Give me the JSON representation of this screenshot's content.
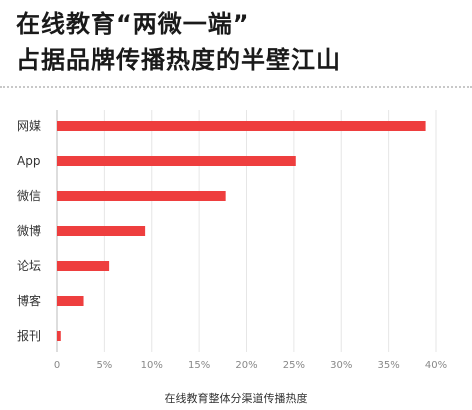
{
  "header": {
    "title_line1": "在线教育“两微一端”",
    "title_line2": "占据品牌传播热度的半壁江山"
  },
  "chart_data": {
    "type": "bar",
    "orientation": "horizontal",
    "categories": [
      "网媒",
      "App",
      "微信",
      "微博",
      "论坛",
      "博客",
      "报刊"
    ],
    "values": [
      38.9,
      25.2,
      17.8,
      9.3,
      5.5,
      2.8,
      0.4
    ],
    "xlabel": "在线教育整体分渠道传播热度",
    "x_ticks": [
      "0",
      "5%",
      "10%",
      "15%",
      "20%",
      "25%",
      "30%",
      "35%",
      "40%"
    ],
    "xlim": [
      0,
      40
    ],
    "bar_color": "#ee3e3e",
    "grid": "vertical"
  }
}
